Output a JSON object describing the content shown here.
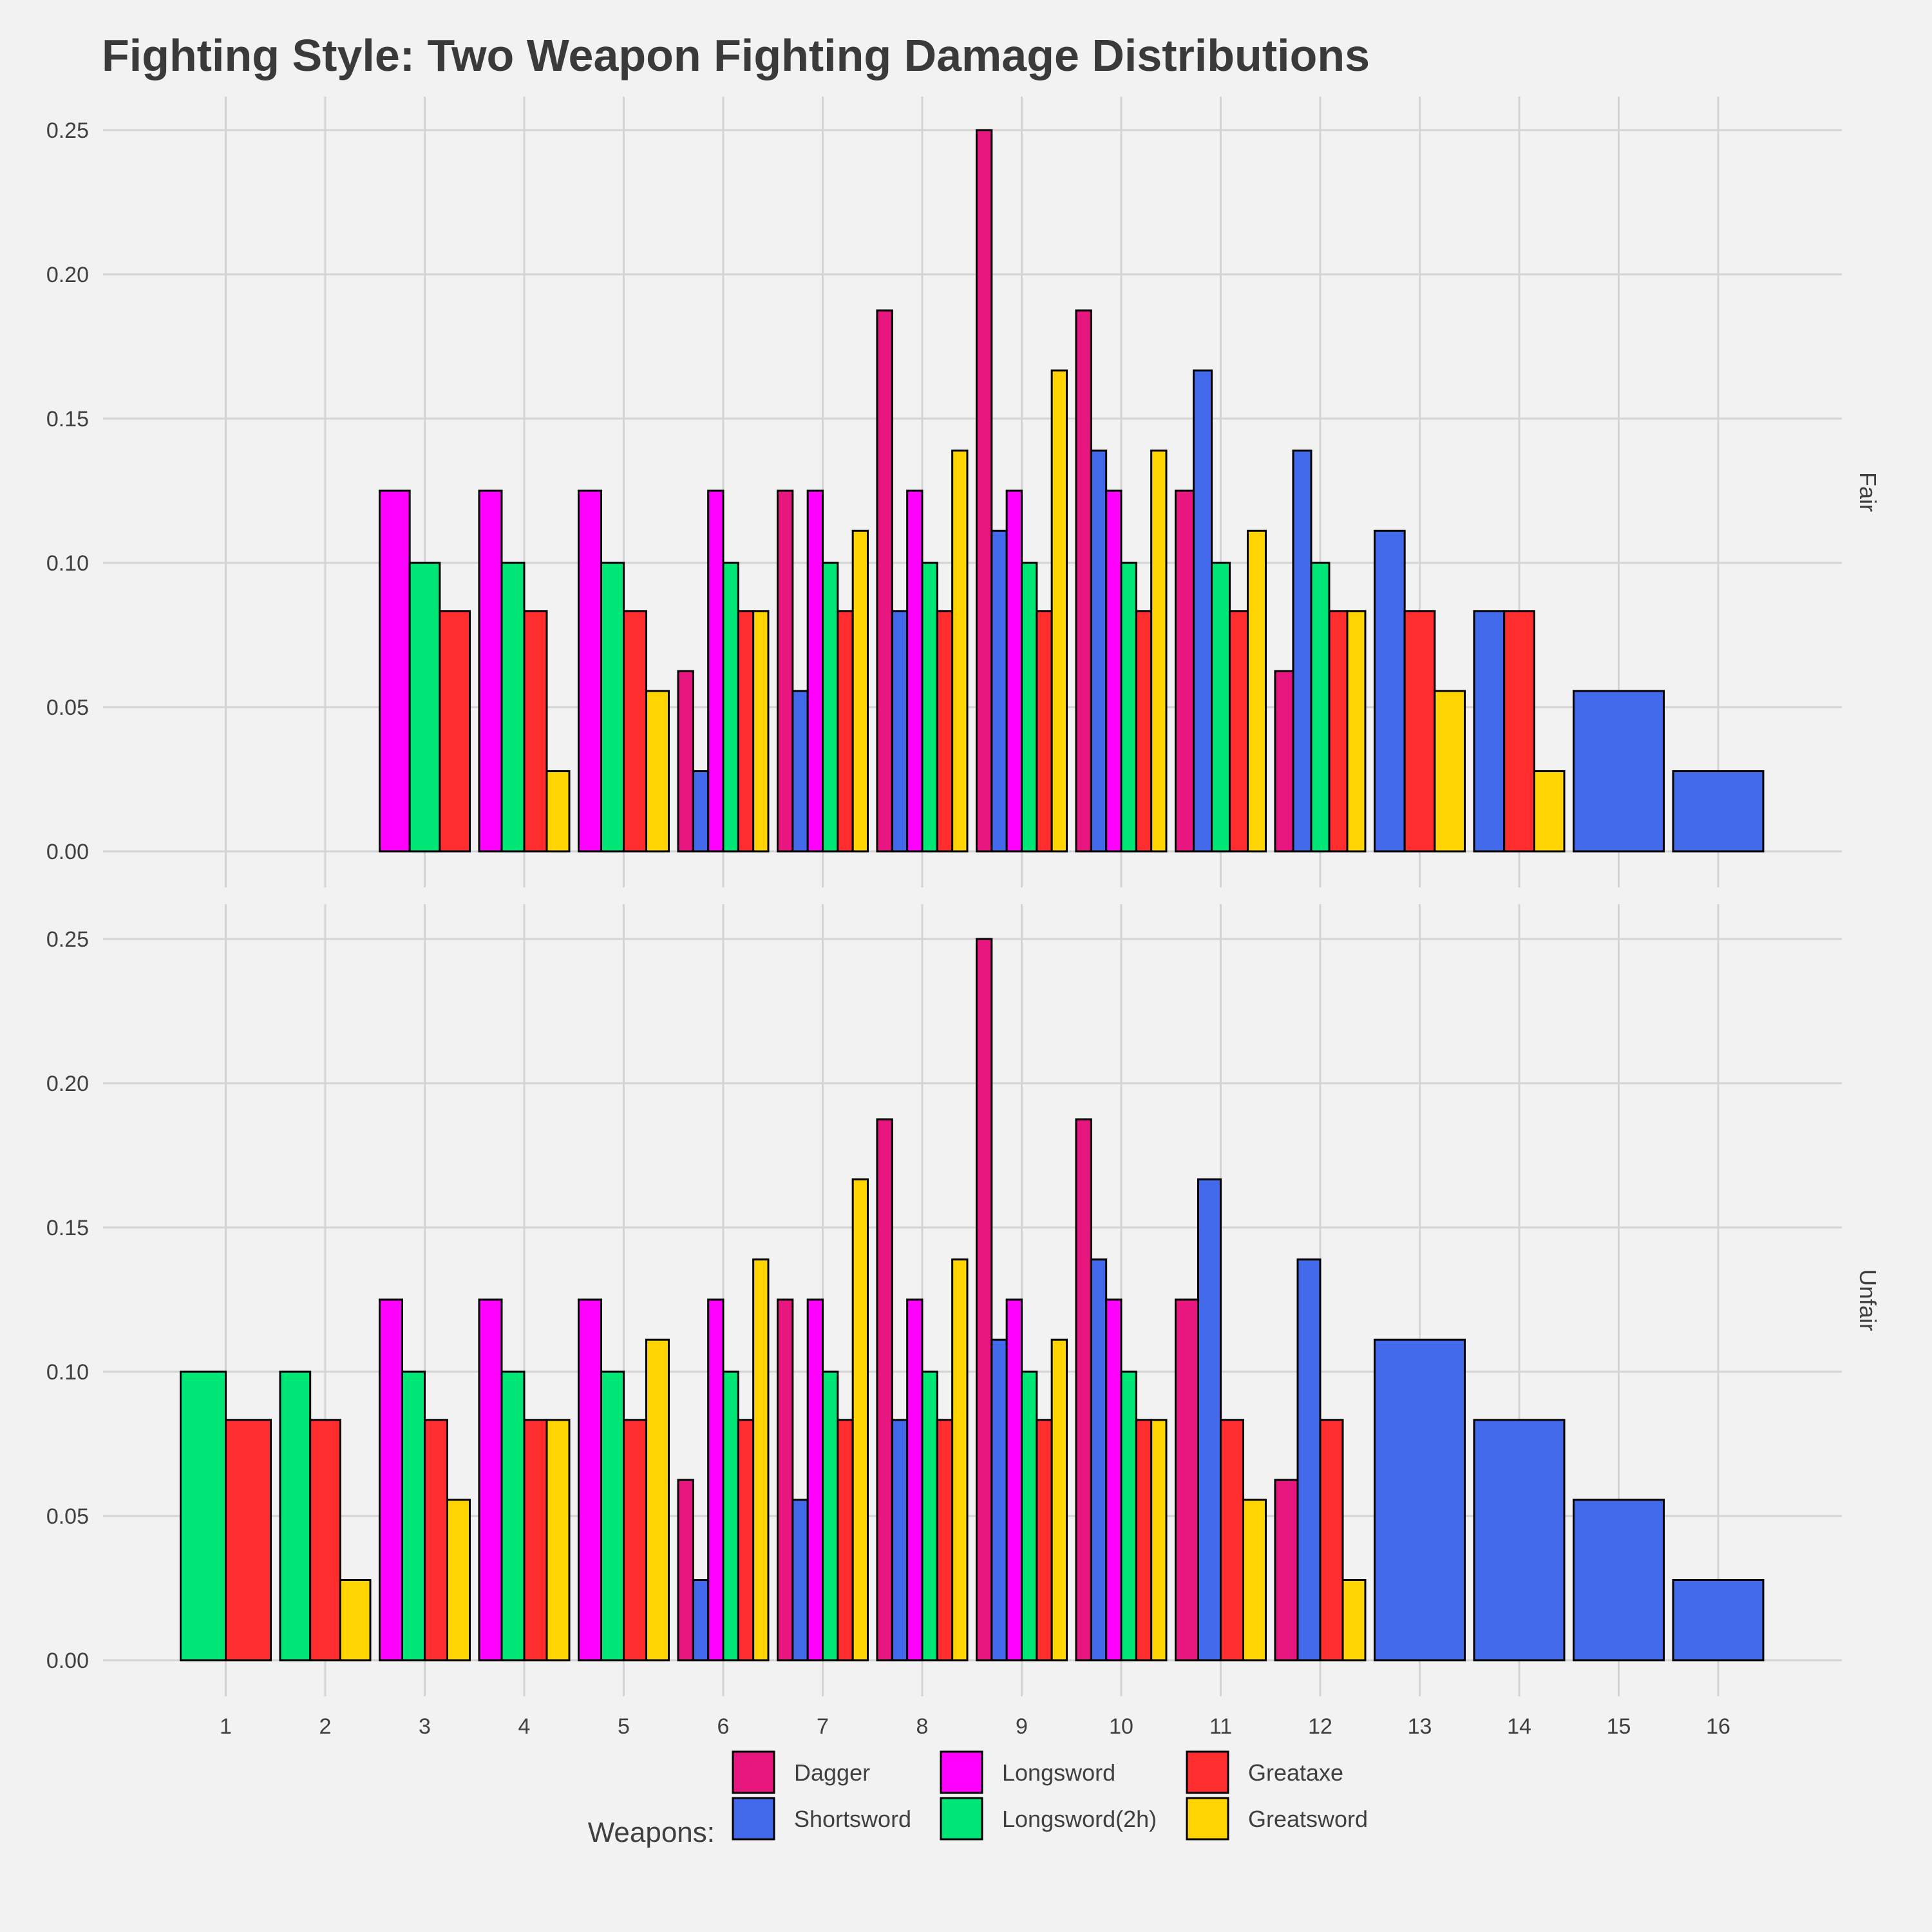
{
  "colors": {
    "background": "#f2f2f2",
    "grid": "#d4d4d4",
    "text": "#404040",
    "title_text": "#3a3a3a",
    "bar_outline": "#000000"
  },
  "chart_data": {
    "type": "bar",
    "layout": "faceted-dodged-bar",
    "title": "Fighting Style: Two Weapon Fighting Damage Distributions",
    "xlabel": "",
    "ylabel": "",
    "x": [
      1,
      2,
      3,
      4,
      5,
      6,
      7,
      8,
      9,
      10,
      11,
      12,
      13,
      14,
      15,
      16
    ],
    "ylim": [
      0,
      0.25
    ],
    "yticks": [
      "0.00",
      "0.05",
      "0.10",
      "0.15",
      "0.20",
      "0.25"
    ],
    "grid": true,
    "legend": {
      "title": "Weapons:",
      "position": "bottom",
      "entries": [
        {
          "name": "Dagger",
          "color": "#e8177f"
        },
        {
          "name": "Shortsword",
          "color": "#4169e9"
        },
        {
          "name": "Longsword",
          "color": "#ff00ff"
        },
        {
          "name": "Longsword(2h)",
          "color": "#00e676"
        },
        {
          "name": "Greataxe",
          "color": "#ff2d2d"
        },
        {
          "name": "Greatsword",
          "color": "#ffd400"
        }
      ]
    },
    "facets": [
      {
        "label": "Fair",
        "series": [
          {
            "name": "Dagger",
            "points": [
              [
                6,
                0.0625
              ],
              [
                7,
                0.125
              ],
              [
                8,
                0.1875
              ],
              [
                9,
                0.25
              ],
              [
                10,
                0.1875
              ],
              [
                11,
                0.125
              ],
              [
                12,
                0.0625
              ]
            ]
          },
          {
            "name": "Shortsword",
            "points": [
              [
                6,
                0.0278
              ],
              [
                7,
                0.0556
              ],
              [
                8,
                0.0833
              ],
              [
                9,
                0.1111
              ],
              [
                10,
                0.1389
              ],
              [
                11,
                0.1667
              ],
              [
                12,
                0.1389
              ],
              [
                13,
                0.1111
              ],
              [
                14,
                0.0833
              ],
              [
                15,
                0.0556
              ],
              [
                16,
                0.0278
              ]
            ]
          },
          {
            "name": "Longsword",
            "points": [
              [
                3,
                0.125
              ],
              [
                4,
                0.125
              ],
              [
                5,
                0.125
              ],
              [
                6,
                0.125
              ],
              [
                7,
                0.125
              ],
              [
                8,
                0.125
              ],
              [
                9,
                0.125
              ],
              [
                10,
                0.125
              ]
            ]
          },
          {
            "name": "Longsword(2h)",
            "points": [
              [
                3,
                0.1
              ],
              [
                4,
                0.1
              ],
              [
                5,
                0.1
              ],
              [
                6,
                0.1
              ],
              [
                7,
                0.1
              ],
              [
                8,
                0.1
              ],
              [
                9,
                0.1
              ],
              [
                10,
                0.1
              ],
              [
                11,
                0.1
              ],
              [
                12,
                0.1
              ]
            ]
          },
          {
            "name": "Greataxe",
            "points": [
              [
                3,
                0.0833
              ],
              [
                4,
                0.0833
              ],
              [
                5,
                0.0833
              ],
              [
                6,
                0.0833
              ],
              [
                7,
                0.0833
              ],
              [
                8,
                0.0833
              ],
              [
                9,
                0.0833
              ],
              [
                10,
                0.0833
              ],
              [
                11,
                0.0833
              ],
              [
                12,
                0.0833
              ],
              [
                13,
                0.0833
              ],
              [
                14,
                0.0833
              ]
            ]
          },
          {
            "name": "Greatsword",
            "points": [
              [
                4,
                0.0278
              ],
              [
                5,
                0.0556
              ],
              [
                6,
                0.0833
              ],
              [
                7,
                0.1111
              ],
              [
                8,
                0.1389
              ],
              [
                9,
                0.1667
              ],
              [
                10,
                0.1389
              ],
              [
                11,
                0.1111
              ],
              [
                12,
                0.0833
              ],
              [
                13,
                0.0556
              ],
              [
                14,
                0.0278
              ]
            ]
          }
        ]
      },
      {
        "label": "Unfair",
        "series": [
          {
            "name": "Dagger",
            "points": [
              [
                6,
                0.0625
              ],
              [
                7,
                0.125
              ],
              [
                8,
                0.1875
              ],
              [
                9,
                0.25
              ],
              [
                10,
                0.1875
              ],
              [
                11,
                0.125
              ],
              [
                12,
                0.0625
              ]
            ]
          },
          {
            "name": "Shortsword",
            "points": [
              [
                6,
                0.0278
              ],
              [
                7,
                0.0556
              ],
              [
                8,
                0.0833
              ],
              [
                9,
                0.1111
              ],
              [
                10,
                0.1389
              ],
              [
                11,
                0.1667
              ],
              [
                12,
                0.1389
              ],
              [
                13,
                0.1111
              ],
              [
                14,
                0.0833
              ],
              [
                15,
                0.0556
              ],
              [
                16,
                0.0278
              ]
            ]
          },
          {
            "name": "Longsword",
            "points": [
              [
                3,
                0.125
              ],
              [
                4,
                0.125
              ],
              [
                5,
                0.125
              ],
              [
                6,
                0.125
              ],
              [
                7,
                0.125
              ],
              [
                8,
                0.125
              ],
              [
                9,
                0.125
              ],
              [
                10,
                0.125
              ]
            ]
          },
          {
            "name": "Longsword(2h)",
            "points": [
              [
                1,
                0.1
              ],
              [
                2,
                0.1
              ],
              [
                3,
                0.1
              ],
              [
                4,
                0.1
              ],
              [
                5,
                0.1
              ],
              [
                6,
                0.1
              ],
              [
                7,
                0.1
              ],
              [
                8,
                0.1
              ],
              [
                9,
                0.1
              ],
              [
                10,
                0.1
              ]
            ]
          },
          {
            "name": "Greataxe",
            "points": [
              [
                1,
                0.0833
              ],
              [
                2,
                0.0833
              ],
              [
                3,
                0.0833
              ],
              [
                4,
                0.0833
              ],
              [
                5,
                0.0833
              ],
              [
                6,
                0.0833
              ],
              [
                7,
                0.0833
              ],
              [
                8,
                0.0833
              ],
              [
                9,
                0.0833
              ],
              [
                10,
                0.0833
              ],
              [
                11,
                0.0833
              ],
              [
                12,
                0.0833
              ]
            ]
          },
          {
            "name": "Greatsword",
            "points": [
              [
                2,
                0.0278
              ],
              [
                3,
                0.0556
              ],
              [
                4,
                0.0833
              ],
              [
                5,
                0.1111
              ],
              [
                6,
                0.1389
              ],
              [
                7,
                0.1667
              ],
              [
                8,
                0.1389
              ],
              [
                9,
                0.1111
              ],
              [
                10,
                0.0833
              ],
              [
                11,
                0.0556
              ],
              [
                12,
                0.0278
              ]
            ]
          }
        ]
      }
    ]
  }
}
